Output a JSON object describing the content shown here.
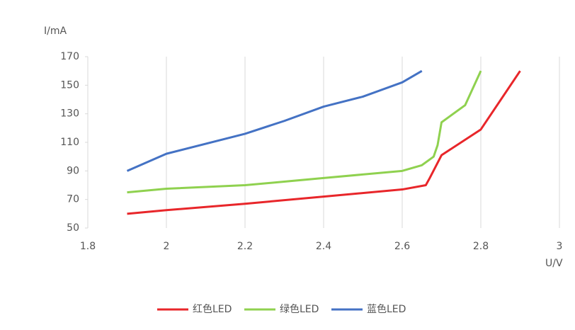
{
  "chart_data": {
    "type": "line",
    "y_label": "I/mA",
    "x_label": "U/V",
    "xlim": [
      1.8,
      3
    ],
    "xticks": [
      1.8,
      2,
      2.2,
      2.4,
      2.6,
      2.8,
      3
    ],
    "ylim": [
      50,
      170
    ],
    "yticks": [
      50,
      70,
      90,
      110,
      130,
      150,
      170
    ],
    "grid": "x",
    "legend": "bottom",
    "series": [
      {
        "name": "红色LED",
        "color": "#e8262a",
        "x": [
          1.9,
          2.0,
          2.2,
          2.4,
          2.6,
          2.66,
          2.67,
          2.7,
          2.8,
          2.9
        ],
        "values": [
          60,
          62.5,
          67,
          72,
          77,
          80,
          85,
          101,
          119,
          160
        ]
      },
      {
        "name": "绿色LED",
        "color": "#8fd14f",
        "x": [
          1.9,
          2.0,
          2.2,
          2.4,
          2.6,
          2.65,
          2.68,
          2.69,
          2.7,
          2.72,
          2.76,
          2.78,
          2.8
        ],
        "values": [
          75,
          77.5,
          80,
          85,
          90,
          94,
          100,
          108,
          124,
          128,
          136,
          148,
          160
        ]
      },
      {
        "name": "蓝色LED",
        "color": "#4472c4",
        "x": [
          1.9,
          2.0,
          2.2,
          2.3,
          2.4,
          2.5,
          2.6,
          2.65
        ],
        "values": [
          90,
          102,
          116,
          125,
          135,
          142,
          152,
          160
        ]
      }
    ]
  }
}
